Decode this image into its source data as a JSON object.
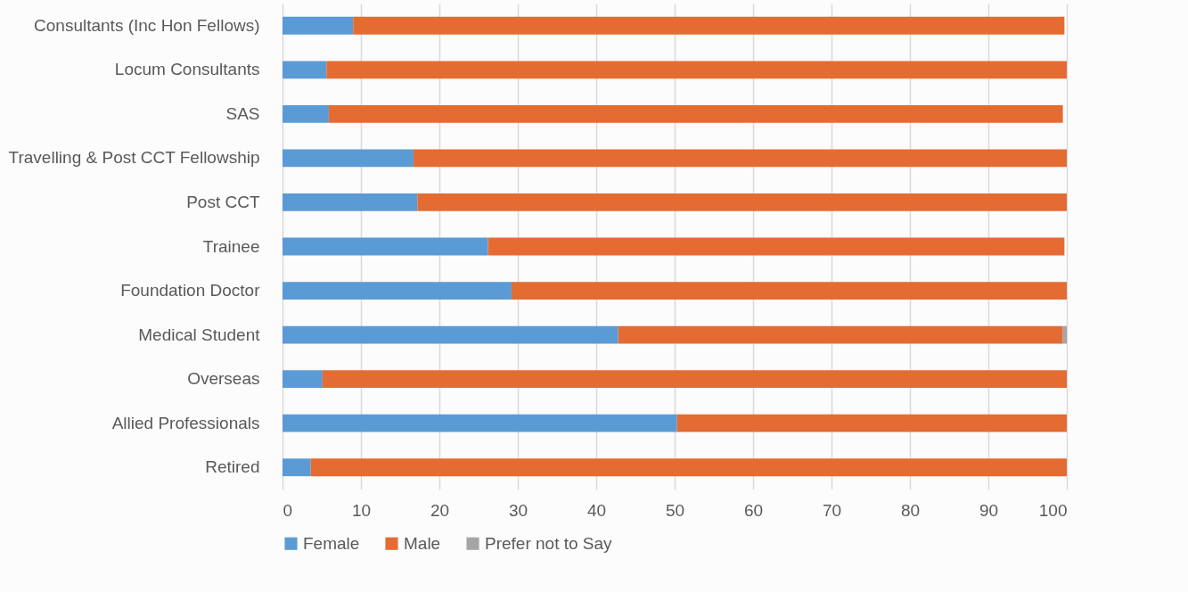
{
  "chart_data": {
    "type": "bar",
    "orientation": "horizontal",
    "stacked": true,
    "categories": [
      "Consultants (Inc Hon Fellows)",
      "Locum Consultants",
      "SAS",
      "Travelling & Post CCT Fellowship",
      "Post CCT",
      "Trainee",
      "Foundation Doctor",
      "Medical Student",
      "Overseas",
      "Allied Professionals",
      "Retired"
    ],
    "series": [
      {
        "name": "Female",
        "color": "#5b9bd5",
        "values": [
          9.0,
          5.6,
          5.9,
          16.7,
          17.2,
          26.2,
          29.2,
          42.8,
          5.1,
          50.3,
          3.6
        ]
      },
      {
        "name": "Male",
        "color": "#e46c32",
        "values": [
          90.7,
          94.4,
          93.6,
          83.3,
          82.8,
          73.5,
          70.8,
          56.7,
          94.9,
          49.7,
          96.4
        ]
      },
      {
        "name": "Prefer not to Say",
        "color": "#a5a5a5",
        "values": [
          0,
          0,
          0,
          0,
          0,
          0,
          0,
          0.5,
          0,
          0,
          0
        ]
      }
    ],
    "xlim": [
      0,
      100
    ],
    "xticks": [
      0,
      10,
      20,
      30,
      40,
      50,
      60,
      70,
      80,
      90,
      100
    ],
    "grid": "x",
    "legend": "bottom"
  }
}
